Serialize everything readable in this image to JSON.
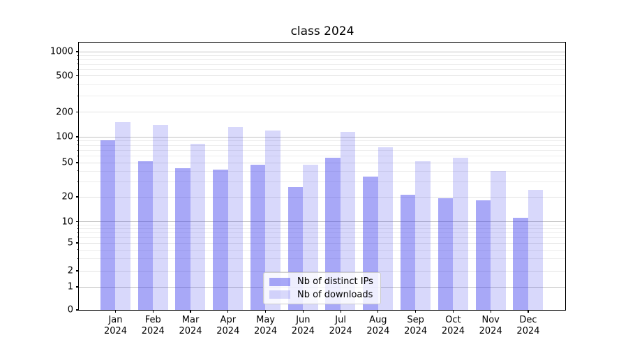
{
  "title": "class 2024",
  "chart_data": {
    "type": "bar",
    "title": "class 2024",
    "categories": [
      "Jan",
      "Feb",
      "Mar",
      "Apr",
      "May",
      "Jun",
      "Jul",
      "Aug",
      "Sep",
      "Oct",
      "Nov",
      "Dec"
    ],
    "category_year": "2024",
    "series": [
      {
        "name": "Nb of distinct IPs",
        "fill": "rgba(62,62,237,0.45)",
        "values": [
          90,
          52,
          43,
          41,
          47,
          26,
          57,
          34,
          21,
          19,
          18,
          11
        ]
      },
      {
        "name": "Nb of downloads",
        "fill": "rgba(62,62,237,0.20)",
        "values": [
          150,
          140,
          82,
          130,
          118,
          47,
          115,
          75,
          52,
          57,
          40,
          24
        ]
      }
    ],
    "yticks": [
      0,
      1,
      2,
      5,
      10,
      20,
      50,
      100,
      200,
      500,
      1000
    ],
    "y_scale": "asinh",
    "ylim": [
      0,
      1000
    ],
    "grid": true,
    "legend_position": "lower center",
    "colors": {
      "major_grid": "#c2c2c2",
      "mid_grid": "#e2e2e2",
      "minor_grid": "#ededed",
      "axis": "#000000"
    }
  }
}
